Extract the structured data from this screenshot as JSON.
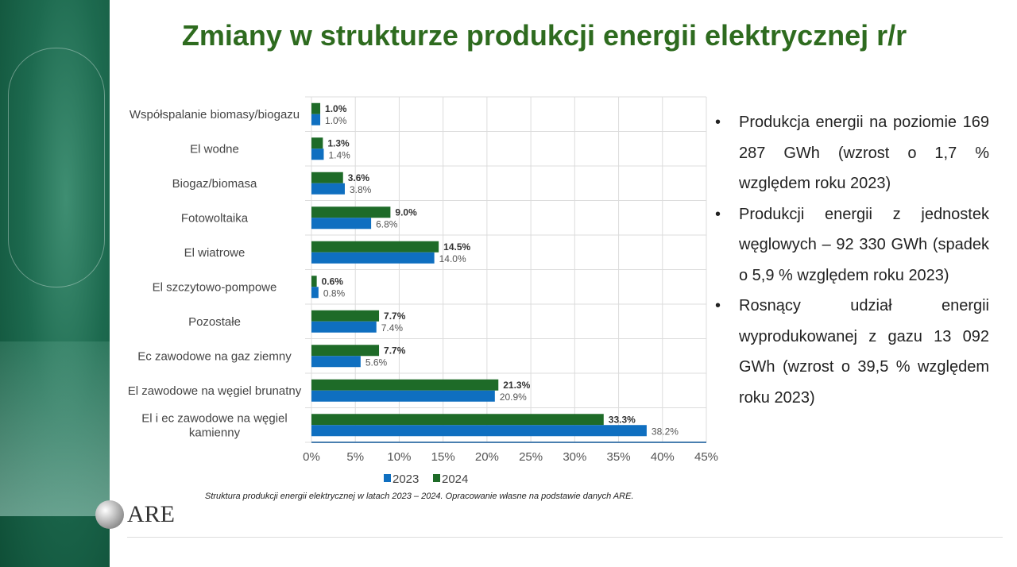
{
  "title": "Zmiany w strukturze produkcji energii elektrycznej r/r",
  "chart_data": {
    "type": "bar",
    "orientation": "horizontal",
    "categories": [
      "Współspalanie biomasy/biogazu",
      "El wodne",
      "Biogaz/biomasa",
      "Fotowoltaika",
      "El wiatrowe",
      "El szczytowo-pompowe",
      "Pozostałe",
      "Ec zawodowe na gaz ziemny",
      "El zawodowe na węgiel brunatny",
      "El i ec zawodowe na węgiel kamienny"
    ],
    "series": [
      {
        "name": "2023",
        "color": "#0f6fc0",
        "values": [
          1.0,
          1.4,
          3.8,
          6.8,
          14.0,
          0.8,
          7.4,
          5.6,
          20.9,
          38.2
        ],
        "labels": [
          "1.0%",
          "1.4%",
          "3.8%",
          "6.8%",
          "14.0%",
          "0.8%",
          "7.4%",
          "5.6%",
          "20.9%",
          "38.2%"
        ]
      },
      {
        "name": "2024",
        "color": "#1e6b28",
        "values": [
          1.0,
          1.3,
          3.6,
          9.0,
          14.5,
          0.6,
          7.7,
          7.7,
          21.3,
          33.3
        ],
        "labels": [
          "1.0%",
          "1.3%",
          "3.6%",
          "9.0%",
          "14.5%",
          "0.6%",
          "7.7%",
          "7.7%",
          "21.3%",
          "33.3%"
        ]
      }
    ],
    "xlim": [
      0,
      45
    ],
    "xticks": [
      "0%",
      "5%",
      "10%",
      "15%",
      "20%",
      "25%",
      "30%",
      "35%",
      "40%",
      "45%"
    ],
    "grid": true,
    "legend": "bottom"
  },
  "caption": "Struktura produkcji energii elektrycznej w latach 2023 – 2024. Opracowanie własne na podstawie danych ARE.",
  "bullets": [
    "Produkcja energii na poziomie 169 287 GWh (wzrost o 1,7 % względem roku 2023)",
    "Produkcji energii z jednostek węglowych – 92 330 GWh (spadek o 5,9 % względem roku 2023)",
    "Rosnący udział energii wyprodukowanej z gazu 13 092 GWh (wzrost o 39,5 % względem roku 2023)"
  ],
  "bullet_symbol": "•",
  "logo": "ARE"
}
